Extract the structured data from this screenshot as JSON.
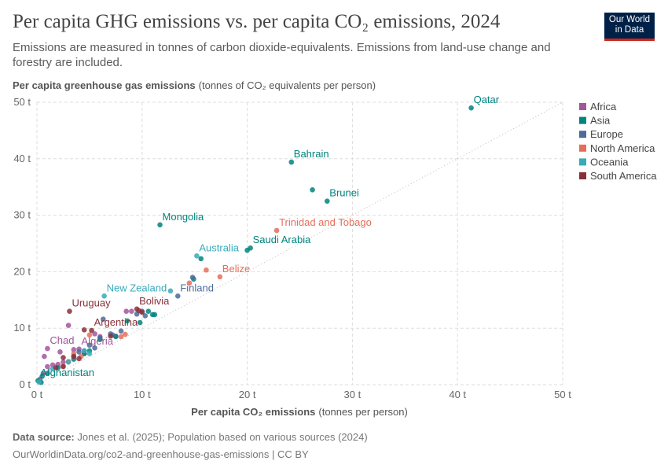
{
  "logo": [
    "Our World",
    "in Data"
  ],
  "chart_data": {
    "type": "scatter",
    "title": "Per capita GHG emissions vs. per capita CO₂ emissions, 2024",
    "subtitle": "Emissions are measured in tonnes of carbon dioxide-equivalents. Emissions from land-use change and forestry are included.",
    "y_label": "Per capita greenhouse gas emissions",
    "y_label_units": "(tonnes of CO₂ equivalents per person)",
    "x_label": "Per capita CO₂ emissions",
    "x_label_units": "(tonnes per person)",
    "source_label": "Data source:",
    "source": "Jones et al. (2025); Population based on various sources (2024)",
    "url": "OurWorldinData.org/co2-and-greenhouse-gas-emissions | CC BY",
    "xlim": [
      0,
      50
    ],
    "ylim": [
      0,
      50
    ],
    "xticks": [
      {
        "value": 0,
        "label": "0 t"
      },
      {
        "value": 10,
        "label": "10 t"
      },
      {
        "value": 20,
        "label": "20 t"
      },
      {
        "value": 30,
        "label": "30 t"
      },
      {
        "value": 40,
        "label": "40 t"
      },
      {
        "value": 50,
        "label": "50 t"
      }
    ],
    "yticks": [
      {
        "value": 0,
        "label": "0 t"
      },
      {
        "value": 10,
        "label": "10 t"
      },
      {
        "value": 20,
        "label": "20 t"
      },
      {
        "value": 30,
        "label": "30 t"
      },
      {
        "value": 40,
        "label": "40 t"
      },
      {
        "value": 50,
        "label": "50 t"
      }
    ],
    "grid": true,
    "legend": "right",
    "series": [
      {
        "name": "Africa",
        "color": "#a2559c",
        "x": [
          1.0,
          4.0,
          3.0,
          8.5,
          9.0,
          0.3,
          0.6,
          1.0,
          1.5,
          2.2,
          2.5,
          3.5,
          4.5,
          6.0,
          0.7,
          7.5,
          5.5,
          2.0
        ],
        "y": [
          6.4,
          6.3,
          10.5,
          13.0,
          13.0,
          1.0,
          2.0,
          3.2,
          3.5,
          5.8,
          4.0,
          6.2,
          5.5,
          8.5,
          5.0,
          8.6,
          9.0,
          3.6
        ],
        "labels": [
          "Chad",
          "Algeria",
          null,
          null,
          null,
          null,
          null,
          null,
          null,
          null,
          null,
          null,
          null,
          null,
          null,
          null,
          null,
          null
        ]
      },
      {
        "name": "Asia",
        "color": "#00847e",
        "x": [
          41.3,
          24.2,
          27.6,
          26.2,
          11.7,
          20.3,
          20.0,
          15.6,
          14.9,
          11.2,
          11.0,
          10.6,
          9.8,
          8.6,
          7.5,
          6.0,
          5.0,
          4.5,
          3.5,
          2.0,
          1.0,
          0.5,
          0.1,
          0.4
        ],
        "y": [
          49.0,
          39.4,
          32.5,
          34.5,
          28.3,
          24.2,
          23.8,
          22.3,
          18.7,
          12.4,
          12.4,
          13.0,
          11.0,
          11.3,
          8.5,
          8.0,
          6.0,
          5.5,
          4.5,
          3.0,
          2.0,
          1.5,
          0.7,
          0.4
        ],
        "labels": [
          "Qatar",
          "Bahrain",
          "Brunei",
          null,
          "Mongolia",
          "Saudi Arabia",
          null,
          null,
          null,
          null,
          null,
          null,
          null,
          null,
          null,
          null,
          null,
          null,
          null,
          null,
          null,
          null,
          "Afghanistan",
          null
        ]
      },
      {
        "name": "Europe",
        "color": "#4c6a9c",
        "x": [
          13.4,
          14.8,
          10.3,
          10.0,
          9.5,
          8.0,
          7.0,
          6.3,
          6.0,
          5.0,
          4.5,
          4.0,
          3.5,
          5.5,
          7.2
        ],
        "y": [
          15.7,
          19.0,
          12.2,
          13.0,
          12.5,
          9.5,
          9.0,
          11.6,
          8.3,
          7.0,
          6.0,
          5.8,
          5.0,
          6.5,
          8.8
        ],
        "labels": [
          "Finland",
          null,
          null,
          null,
          null,
          null,
          null,
          null,
          null,
          null,
          null,
          null,
          null,
          null,
          null
        ]
      },
      {
        "name": "North America",
        "color": "#e56e5a",
        "x": [
          22.8,
          17.4,
          16.1,
          14.5,
          8.4,
          8.0,
          5.0,
          3.5,
          2.5,
          4.2,
          3.0
        ],
        "y": [
          27.3,
          19.1,
          20.3,
          18.0,
          8.9,
          8.5,
          8.8,
          5.5,
          3.3,
          5.0,
          4.1
        ],
        "labels": [
          "Trinidad and Tobago",
          "Belize",
          null,
          null,
          null,
          null,
          null,
          null,
          null,
          null,
          null
        ]
      },
      {
        "name": "Oceania",
        "color": "#38aaba",
        "x": [
          15.2,
          6.4,
          12.7,
          1.5,
          0.2,
          4.5,
          5.0,
          3.0
        ],
        "y": [
          22.8,
          15.7,
          16.6,
          2.8,
          0.5,
          6.0,
          5.5,
          4.0
        ],
        "labels": [
          "Australia",
          "New Zealand",
          null,
          null,
          null,
          null,
          null,
          null
        ]
      },
      {
        "name": "South America",
        "color": "#883039",
        "x": [
          3.1,
          9.5,
          5.2,
          9.7,
          10.0,
          4.5,
          7.0,
          3.5,
          2.5,
          2.5,
          1.8,
          4.0
        ],
        "y": [
          13.0,
          13.4,
          9.6,
          13.1,
          12.8,
          9.7,
          8.6,
          5.0,
          4.8,
          3.2,
          3.0,
          4.6
        ],
        "labels": [
          "Uruguay",
          "Bolivia",
          "Argentina",
          null,
          null,
          null,
          null,
          null,
          null,
          null,
          null,
          null
        ]
      }
    ]
  }
}
